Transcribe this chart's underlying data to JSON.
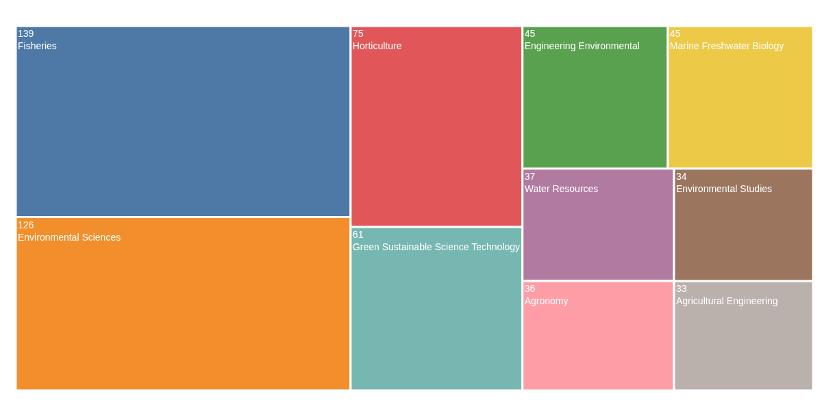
{
  "chart_data": {
    "type": "other",
    "categories": [
      "Fisheries",
      "Environmental Sciences",
      "Horticulture",
      "Green Sustainable Science Technology",
      "Engineering Environmental",
      "Marine Freshwater Biology",
      "Water Resources",
      "Agronomy",
      "Environmental Studies",
      "Agricultural Engineering"
    ],
    "values": [
      139,
      126,
      75,
      61,
      45,
      45,
      37,
      36,
      34,
      33
    ],
    "colors": [
      "#4e79a7",
      "#f28e2b",
      "#e15759",
      "#76b7b2",
      "#59a14f",
      "#edc948",
      "#b07aa1",
      "#ff9da7",
      "#9c755f",
      "#bab0ac"
    ],
    "data_labels": true
  }
}
